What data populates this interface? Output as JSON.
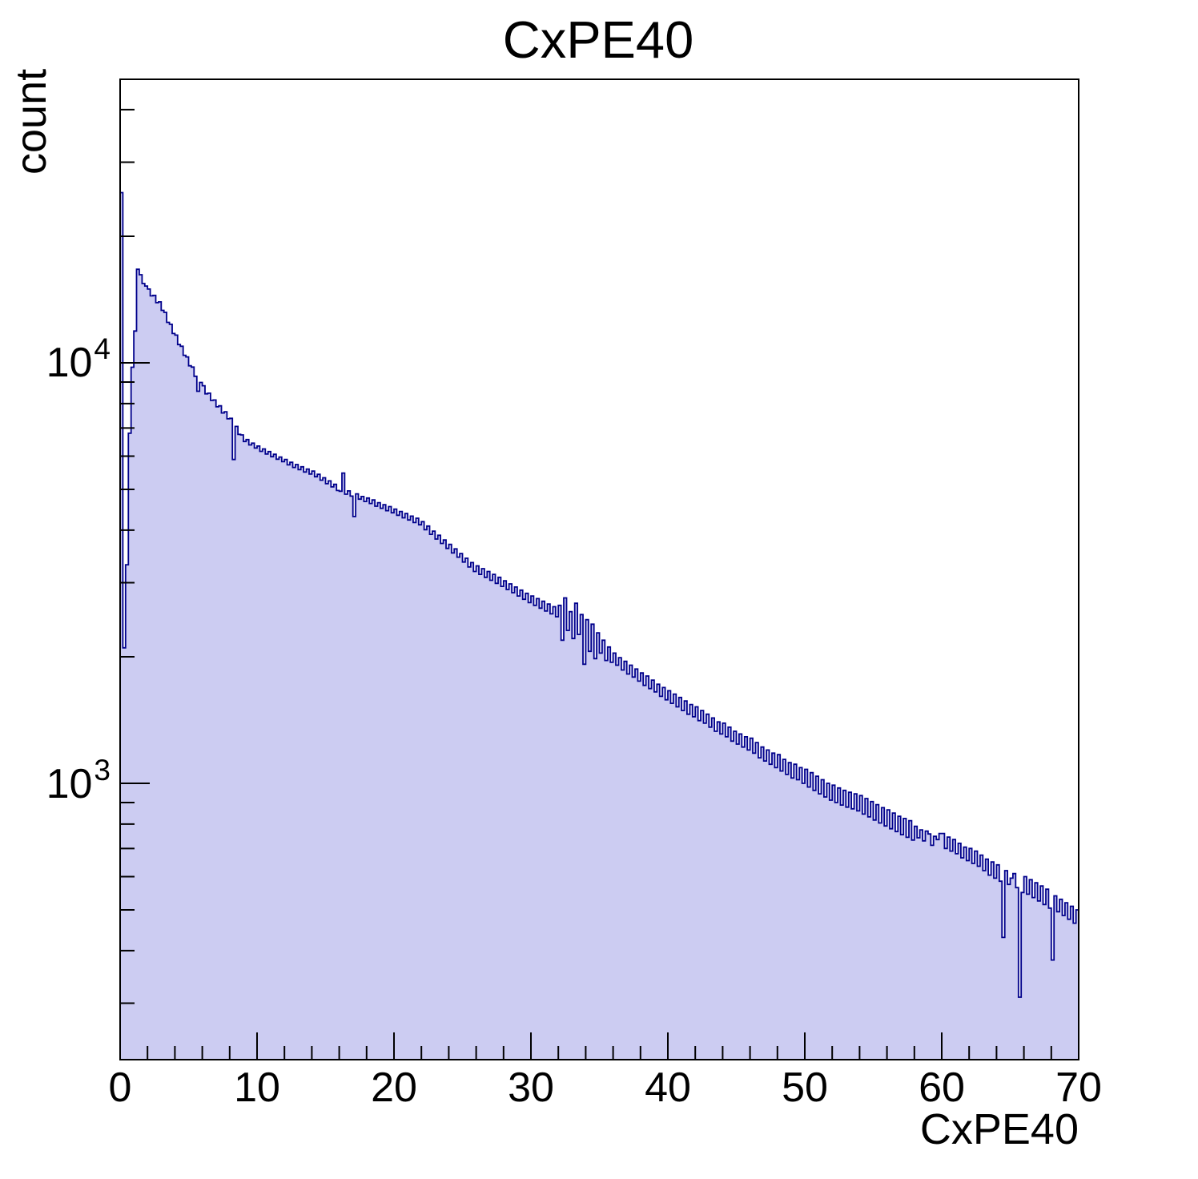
{
  "title": "CxPE40",
  "axes": {
    "x": {
      "title": "CxPE40",
      "min": 0,
      "max": 70,
      "major_ticks": [
        0,
        10,
        20,
        30,
        40,
        50,
        60,
        70
      ],
      "tick_labels": [
        "0",
        "10",
        "20",
        "30",
        "40",
        "50",
        "60",
        "70"
      ],
      "minor_tick_step": 2
    },
    "y": {
      "title": "count",
      "scale": "log",
      "min": 220,
      "max": 47200,
      "major_tick_labels": [
        {
          "base": "10",
          "exp": "3",
          "value": 1000
        },
        {
          "base": "10",
          "exp": "4",
          "value": 10000
        }
      ],
      "minor_decades": [
        100,
        1000,
        10000
      ]
    }
  },
  "colors": {
    "histogram_fill": "#ccccf2",
    "histogram_line": "#00008b",
    "frame": "#000000",
    "background": "#ffffff"
  },
  "chart_data": {
    "type": "bar",
    "subtype": "histogram",
    "title": "CxPE40",
    "xlabel": "CxPE40",
    "ylabel": "count",
    "yscale": "log",
    "grid": false,
    "legend": "none",
    "xlim": [
      0,
      70
    ],
    "ylim": [
      220,
      47200
    ],
    "x_bins": {
      "min": 0,
      "max": 70,
      "count": 350,
      "width": 0.2
    },
    "counts": [
      25400,
      2100,
      3310,
      6800,
      9760,
      11900,
      16690,
      16200,
      15440,
      15230,
      14980,
      14430,
      14470,
      13900,
      13960,
      13330,
      13180,
      12480,
      12350,
      11740,
      11640,
      11050,
      10950,
      10420,
      10330,
      9840,
      9770,
      9290,
      8560,
      8980,
      8820,
      8440,
      8470,
      8140,
      8160,
      7860,
      7900,
      7600,
      7650,
      7360,
      7380,
      5890,
      7060,
      6760,
      6740,
      6500,
      6570,
      6380,
      6440,
      6270,
      6340,
      6160,
      6240,
      6070,
      6150,
      5980,
      6060,
      5900,
      5970,
      5820,
      5890,
      5720,
      5800,
      5640,
      5730,
      5570,
      5660,
      5500,
      5590,
      5440,
      5530,
      5360,
      5430,
      5260,
      5330,
      5160,
      5240,
      5070,
      5140,
      4970,
      4950,
      5470,
      4870,
      4960,
      4820,
      4310,
      4880,
      4740,
      4810,
      4680,
      4770,
      4630,
      4720,
      4560,
      4650,
      4510,
      4600,
      4450,
      4550,
      4400,
      4490,
      4340,
      4430,
      4280,
      4380,
      4230,
      4320,
      4170,
      4270,
      4120,
      4190,
      4010,
      4090,
      3910,
      3980,
      3810,
      3890,
      3720,
      3790,
      3620,
      3700,
      3530,
      3610,
      3450,
      3520,
      3360,
      3430,
      3270,
      3350,
      3190,
      3290,
      3140,
      3240,
      3090,
      3190,
      3040,
      3140,
      2990,
      3090,
      2940,
      3030,
      2890,
      2980,
      2840,
      2930,
      2790,
      2880,
      2740,
      2830,
      2690,
      2790,
      2650,
      2750,
      2610,
      2710,
      2570,
      2670,
      2530,
      2630,
      2490,
      2650,
      2190,
      2760,
      2310,
      2560,
      2210,
      2680,
      2260,
      2520,
      1920,
      2450,
      2060,
      2390,
      1980,
      2280,
      2040,
      2190,
      1960,
      2110,
      1940,
      2040,
      1910,
      1990,
      1860,
      1950,
      1820,
      1910,
      1790,
      1870,
      1750,
      1830,
      1710,
      1800,
      1680,
      1760,
      1650,
      1720,
      1610,
      1690,
      1580,
      1660,
      1550,
      1630,
      1520,
      1600,
      1490,
      1570,
      1460,
      1540,
      1440,
      1520,
      1410,
      1490,
      1390,
      1460,
      1360,
      1430,
      1330,
      1400,
      1310,
      1390,
      1290,
      1360,
      1260,
      1330,
      1240,
      1310,
      1220,
      1290,
      1200,
      1280,
      1180,
      1250,
      1150,
      1220,
      1130,
      1200,
      1110,
      1180,
      1090,
      1170,
      1070,
      1140,
      1050,
      1120,
      1030,
      1110,
      1020,
      1090,
      1000,
      1080,
      980,
      1060,
      962,
      1040,
      944,
      1020,
      928,
      1000,
      912,
      990,
      900,
      975,
      888,
      962,
      878,
      952,
      870,
      944,
      860,
      935,
      845,
      920,
      832,
      905,
      818,
      890,
      805,
      875,
      792,
      865,
      780,
      850,
      768,
      835,
      755,
      825,
      744,
      815,
      733,
      790,
      742,
      775,
      730,
      770,
      758,
      712,
      748,
      735,
      760,
      760,
      700,
      745,
      690,
      735,
      680,
      720,
      665,
      705,
      655,
      700,
      645,
      690,
      635,
      675,
      620,
      660,
      605,
      650,
      595,
      640,
      585,
      430,
      620,
      575,
      595,
      610,
      565,
      310,
      550,
      600,
      545,
      590,
      535,
      580,
      525,
      570,
      515,
      560,
      505,
      380,
      540,
      495,
      530,
      485,
      520,
      475,
      510,
      465,
      500
    ]
  }
}
